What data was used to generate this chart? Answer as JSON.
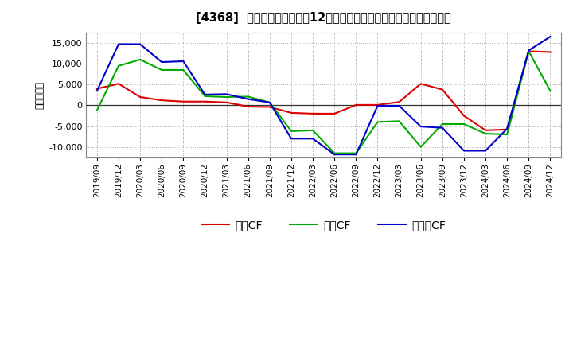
{
  "title": "[4368]  キャッシュフローの12か月移動合計の対前年同期増減額の推移",
  "ylabel": "（百万円）",
  "background_color": "#ffffff",
  "plot_bg_color": "#ffffff",
  "grid_color": "#999999",
  "x_labels": [
    "2019/09",
    "2019/12",
    "2020/03",
    "2020/06",
    "2020/09",
    "2020/12",
    "2021/03",
    "2021/06",
    "2021/09",
    "2021/12",
    "2022/03",
    "2022/06",
    "2022/09",
    "2022/12",
    "2023/03",
    "2023/06",
    "2023/09",
    "2023/12",
    "2024/03",
    "2024/06",
    "2024/09",
    "2024/12"
  ],
  "operating_cf": [
    4000,
    5200,
    2000,
    1200,
    900,
    900,
    700,
    -300,
    -400,
    -1800,
    -2000,
    -2000,
    100,
    100,
    800,
    5200,
    3800,
    -2500,
    -6000,
    -5800,
    13000,
    12800
  ],
  "investing_cf": [
    -1200,
    9500,
    11000,
    8500,
    8500,
    2200,
    2000,
    2100,
    700,
    -6200,
    -6000,
    -11500,
    -11500,
    -4000,
    -3800,
    -10000,
    -4500,
    -4500,
    -6800,
    -7000,
    13000,
    3500
  ],
  "free_cf": [
    3500,
    14700,
    14700,
    10400,
    10600,
    2600,
    2700,
    1500,
    700,
    -8000,
    -8000,
    -11800,
    -11800,
    -100,
    -100,
    -5100,
    -5400,
    -10900,
    -10900,
    -5600,
    13200,
    16500
  ],
  "operating_color": "#dd0000",
  "investing_color": "#00aa00",
  "free_color": "#0000cc",
  "ylim": [
    -12500,
    17500
  ],
  "yticks": [
    -10000,
    -5000,
    0,
    5000,
    10000,
    15000
  ],
  "legend_labels": [
    "営業CF",
    "投資CF",
    "フリーCF"
  ]
}
